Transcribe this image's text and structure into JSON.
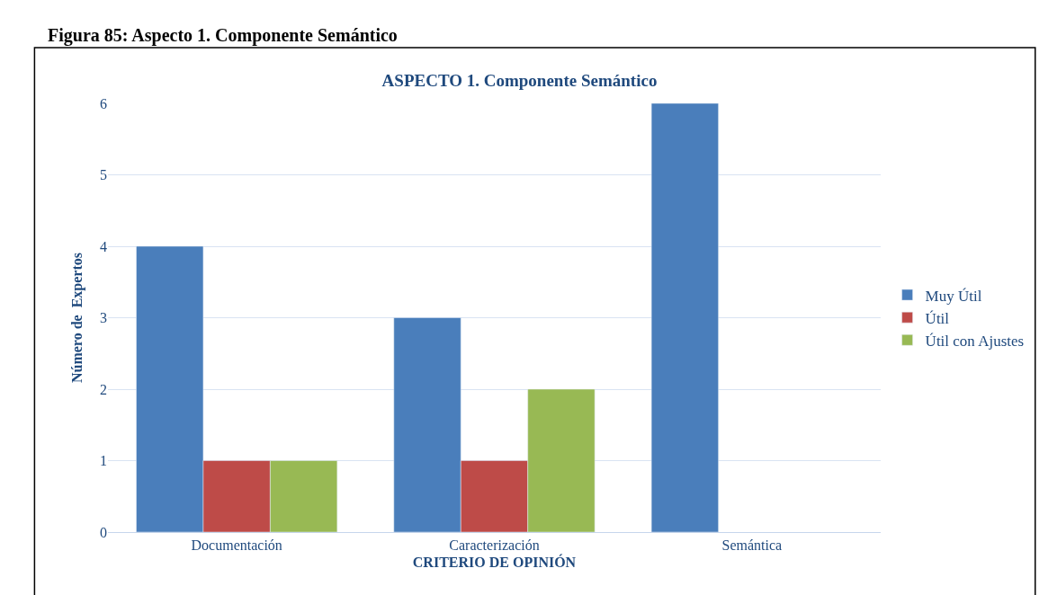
{
  "chart_data": {
    "type": "bar",
    "title": "ASPECTO 1. Componente Semántico",
    "xlabel": "CRITERIO DE OPINIÓN",
    "ylabel": "Número de  Expertos",
    "annotations": [
      "Figura 85: Aspecto 1. Componente Semántico"
    ],
    "categories": [
      "Documentación",
      "Caracterización",
      "Semántica"
    ],
    "series": [
      {
        "name": "Muy Útil",
        "color": "#4a7ebb",
        "values": [
          4,
          3,
          6
        ]
      },
      {
        "name": "Útil",
        "color": "#be4b48",
        "values": [
          1,
          1,
          null
        ]
      },
      {
        "name": "Útil con Ajustes",
        "color": "#98b954",
        "values": [
          1,
          2,
          null
        ]
      }
    ],
    "ylim": [
      0,
      6
    ],
    "yticks": [
      0,
      1,
      2,
      3,
      4,
      5,
      6
    ],
    "grid": "y",
    "legend": "right"
  }
}
